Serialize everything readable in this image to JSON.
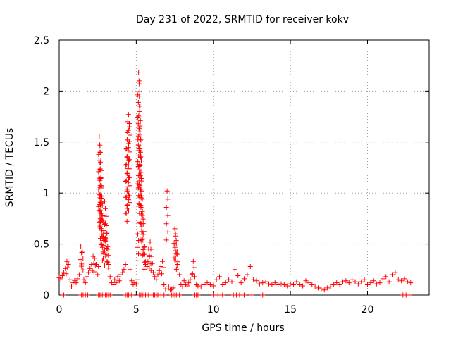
{
  "chart_data": {
    "type": "scatter",
    "title": "Day 231 of 2022, SRMTID for receiver kokv",
    "xlabel": "GPS time / hours",
    "ylabel": "SRMTID / TECUs",
    "xlim": [
      0,
      24
    ],
    "ylim": [
      0,
      2.5
    ],
    "xticks": [
      0,
      5,
      10,
      15,
      20
    ],
    "xtick_labels": [
      "0",
      "5",
      "10",
      "15",
      "20"
    ],
    "yticks": [
      0,
      0.5,
      1,
      1.5,
      2,
      2.5
    ],
    "ytick_labels": [
      "0",
      "0.5",
      "1",
      "1.5",
      "2",
      "2.5"
    ],
    "grid": true,
    "marker": "+",
    "color": "#ff0000",
    "series": [
      {
        "name": "SRMTID",
        "x": [
          0.0,
          0.1,
          0.2,
          0.3,
          0.4,
          0.5,
          0.6,
          0.7,
          0.8,
          0.9,
          1.0,
          1.1,
          1.2,
          1.3,
          1.4,
          1.5,
          1.6,
          1.7,
          1.8,
          1.9,
          2.0,
          2.1,
          2.2,
          2.3,
          2.4,
          2.5,
          2.55,
          2.6,
          2.62,
          2.65,
          2.68,
          2.7,
          2.72,
          2.75,
          2.8,
          2.85,
          2.9,
          2.95,
          3.0,
          3.05,
          3.1,
          3.15,
          3.2,
          3.3,
          3.4,
          3.5,
          3.6,
          3.7,
          3.8,
          3.9,
          4.0,
          4.1,
          4.2,
          4.3,
          4.35,
          4.4,
          4.45,
          4.5,
          4.55,
          4.6,
          4.7,
          4.8,
          4.9,
          5.0,
          5.05,
          5.1,
          5.15,
          5.18,
          5.2,
          5.22,
          5.25,
          5.28,
          5.3,
          5.35,
          5.4,
          5.45,
          5.5,
          5.55,
          5.6,
          5.7,
          5.8,
          5.9,
          6.0,
          6.1,
          6.2,
          6.3,
          6.4,
          6.5,
          6.6,
          6.7,
          6.8,
          6.9,
          7.0,
          7.1,
          7.2,
          7.3,
          7.4,
          7.5,
          7.55,
          7.6,
          7.65,
          7.7,
          7.8,
          7.9,
          8.0,
          8.1,
          8.2,
          8.3,
          8.4,
          8.5,
          8.6,
          8.7,
          8.8,
          8.9,
          9.0,
          9.2,
          9.4,
          9.6,
          9.8,
          10.0,
          10.2,
          10.4,
          10.6,
          10.8,
          11.0,
          11.2,
          11.4,
          11.6,
          11.8,
          12.0,
          12.2,
          12.4,
          12.6,
          12.8,
          13.0,
          13.2,
          13.4,
          13.6,
          13.8,
          14.0,
          14.2,
          14.4,
          14.6,
          14.8,
          15.0,
          15.2,
          15.4,
          15.6,
          15.8,
          16.0,
          16.2,
          16.4,
          16.6,
          16.8,
          17.0,
          17.2,
          17.4,
          17.6,
          17.8,
          18.0,
          18.2,
          18.4,
          18.6,
          18.8,
          19.0,
          19.2,
          19.4,
          19.6,
          19.8,
          20.0,
          20.2,
          20.4,
          20.6,
          20.8,
          21.0,
          21.2,
          21.4,
          21.6,
          21.8,
          22.0,
          22.2,
          22.4,
          22.6,
          22.8
        ],
        "y": [
          0.17,
          0.16,
          0.19,
          0.22,
          0.26,
          0.33,
          0.3,
          0.15,
          0.08,
          0.12,
          0.14,
          0.12,
          0.16,
          0.2,
          0.48,
          0.42,
          0.15,
          0.12,
          0.18,
          0.22,
          0.26,
          0.3,
          0.38,
          0.36,
          0.3,
          0.2,
          0.28,
          1.55,
          1.48,
          1.4,
          1.3,
          1.15,
          1.05,
          0.95,
          0.78,
          0.6,
          0.5,
          0.92,
          0.85,
          0.68,
          0.55,
          0.45,
          0.3,
          0.18,
          0.12,
          0.1,
          0.15,
          0.12,
          0.18,
          0.14,
          0.2,
          0.22,
          0.25,
          0.3,
          1.43,
          1.6,
          1.7,
          1.77,
          1.65,
          0.25,
          0.14,
          0.1,
          0.12,
          0.11,
          0.15,
          0.6,
          2.18,
          2.1,
          1.95,
          1.8,
          1.6,
          1.4,
          1.2,
          1.02,
          0.82,
          0.7,
          0.55,
          0.4,
          0.3,
          0.28,
          0.45,
          0.52,
          0.38,
          0.22,
          0.18,
          0.15,
          0.2,
          0.24,
          0.28,
          0.33,
          0.1,
          0.06,
          1.02,
          0.08,
          0.05,
          0.06,
          0.07,
          0.65,
          0.6,
          0.5,
          0.4,
          0.3,
          0.2,
          0.1,
          0.08,
          0.14,
          0.1,
          0.09,
          0.12,
          0.15,
          0.2,
          0.33,
          0.18,
          0.1,
          0.09,
          0.08,
          0.1,
          0.12,
          0.1,
          0.09,
          0.15,
          0.18,
          0.1,
          0.12,
          0.15,
          0.13,
          0.25,
          0.19,
          0.12,
          0.16,
          0.2,
          0.28,
          0.15,
          0.14,
          0.11,
          0.12,
          0.13,
          0.11,
          0.1,
          0.12,
          0.1,
          0.11,
          0.1,
          0.09,
          0.11,
          0.1,
          0.13,
          0.1,
          0.09,
          0.14,
          0.12,
          0.1,
          0.08,
          0.07,
          0.06,
          0.05,
          0.07,
          0.08,
          0.1,
          0.12,
          0.1,
          0.13,
          0.14,
          0.12,
          0.15,
          0.13,
          0.11,
          0.13,
          0.15,
          0.1,
          0.12,
          0.14,
          0.11,
          0.12,
          0.16,
          0.18,
          0.13,
          0.2,
          0.22,
          0.15,
          0.14,
          0.16,
          0.13,
          0.12
        ],
        "baseline_x": [
          0.25,
          0.3,
          1.35,
          1.45,
          1.55,
          1.7,
          1.85,
          2.55,
          2.62,
          2.7,
          2.8,
          2.9,
          3.0,
          3.1,
          3.2,
          3.3,
          4.3,
          4.4,
          4.5,
          4.6,
          4.7,
          5.2,
          5.3,
          5.4,
          5.5,
          5.6,
          5.7,
          5.8,
          6.1,
          6.2,
          6.3,
          6.4,
          6.6,
          6.8,
          7.3,
          7.4,
          7.5,
          7.6,
          7.7,
          7.8,
          8.8,
          8.9,
          9.0,
          10.0,
          10.3,
          10.6,
          11.3,
          11.5,
          11.7,
          12.0,
          12.5,
          13.2,
          22.3,
          22.5,
          22.7
        ]
      }
    ]
  }
}
